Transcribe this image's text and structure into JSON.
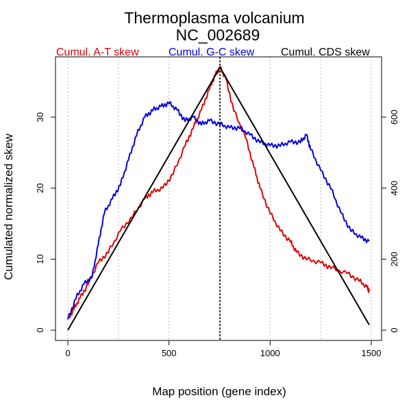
{
  "chart_data": {
    "type": "line",
    "title": "Thermoplasma volcanium",
    "subtitle": "NC_002689",
    "xlabel": "Map position (gene index)",
    "ylabel": "Cumulated normalized skew",
    "xlim": [
      0,
      1500
    ],
    "ylim_left": [
      0,
      37
    ],
    "ylim_right": [
      0,
      740
    ],
    "x_ticks": [
      0,
      500,
      1000,
      1500
    ],
    "y_ticks_left": [
      0,
      10,
      20,
      30
    ],
    "y_ticks_right": [
      0,
      200,
      400,
      600
    ],
    "vertical_gridlines": [
      0,
      250,
      500,
      750,
      1000,
      1250,
      1500
    ],
    "max_marker_x": 752,
    "legend": [
      {
        "label": "Cumul. A-T skew",
        "color": "#e00000"
      },
      {
        "label": "Cumul. G-C skew",
        "color": "#0000dd"
      },
      {
        "label": "Cumul. CDS skew",
        "color": "#000000"
      }
    ],
    "series": [
      {
        "name": "Cumul. A-T skew",
        "color": "#e00000",
        "axis": "left",
        "x": [
          0,
          30,
          60,
          100,
          150,
          200,
          260,
          320,
          380,
          420,
          470,
          520,
          580,
          620,
          660,
          700,
          730,
          752,
          780,
          820,
          880,
          920,
          950,
          1000,
          1050,
          1100,
          1130,
          1180,
          1250,
          1300,
          1380,
          1440,
          1480,
          1490
        ],
        "values": [
          1.5,
          3,
          4.5,
          6.5,
          9.5,
          11,
          14,
          16,
          18.5,
          19.5,
          20,
          22,
          26,
          28.5,
          31,
          34,
          36,
          37,
          35.5,
          31,
          27,
          23,
          20,
          16.5,
          14,
          12.5,
          11,
          10,
          9.5,
          8.8,
          8,
          7,
          6,
          5.5
        ]
      },
      {
        "name": "Cumul. G-C skew",
        "color": "#0000dd",
        "axis": "left",
        "x": [
          0,
          40,
          80,
          120,
          150,
          180,
          220,
          260,
          300,
          340,
          380,
          420,
          460,
          500,
          540,
          580,
          620,
          660,
          700,
          752,
          800,
          850,
          900,
          950,
          1000,
          1050,
          1100,
          1150,
          1180,
          1200,
          1250,
          1300,
          1350,
          1400,
          1450,
          1490
        ],
        "values": [
          1.5,
          4.5,
          6.5,
          7.5,
          12,
          16.5,
          18.5,
          20.5,
          24,
          27.5,
          30,
          31,
          31.5,
          32,
          31,
          29.5,
          30,
          29,
          29.5,
          29,
          28.5,
          28.5,
          27.5,
          26.5,
          26,
          26,
          26.5,
          26.5,
          27.5,
          25.5,
          22.5,
          20,
          16.5,
          14,
          13,
          12.5
        ]
      },
      {
        "name": "Cumul. CDS skew",
        "color": "#000000",
        "axis": "right",
        "x": [
          0,
          752,
          1490
        ],
        "values": [
          0,
          740,
          15
        ]
      }
    ]
  }
}
